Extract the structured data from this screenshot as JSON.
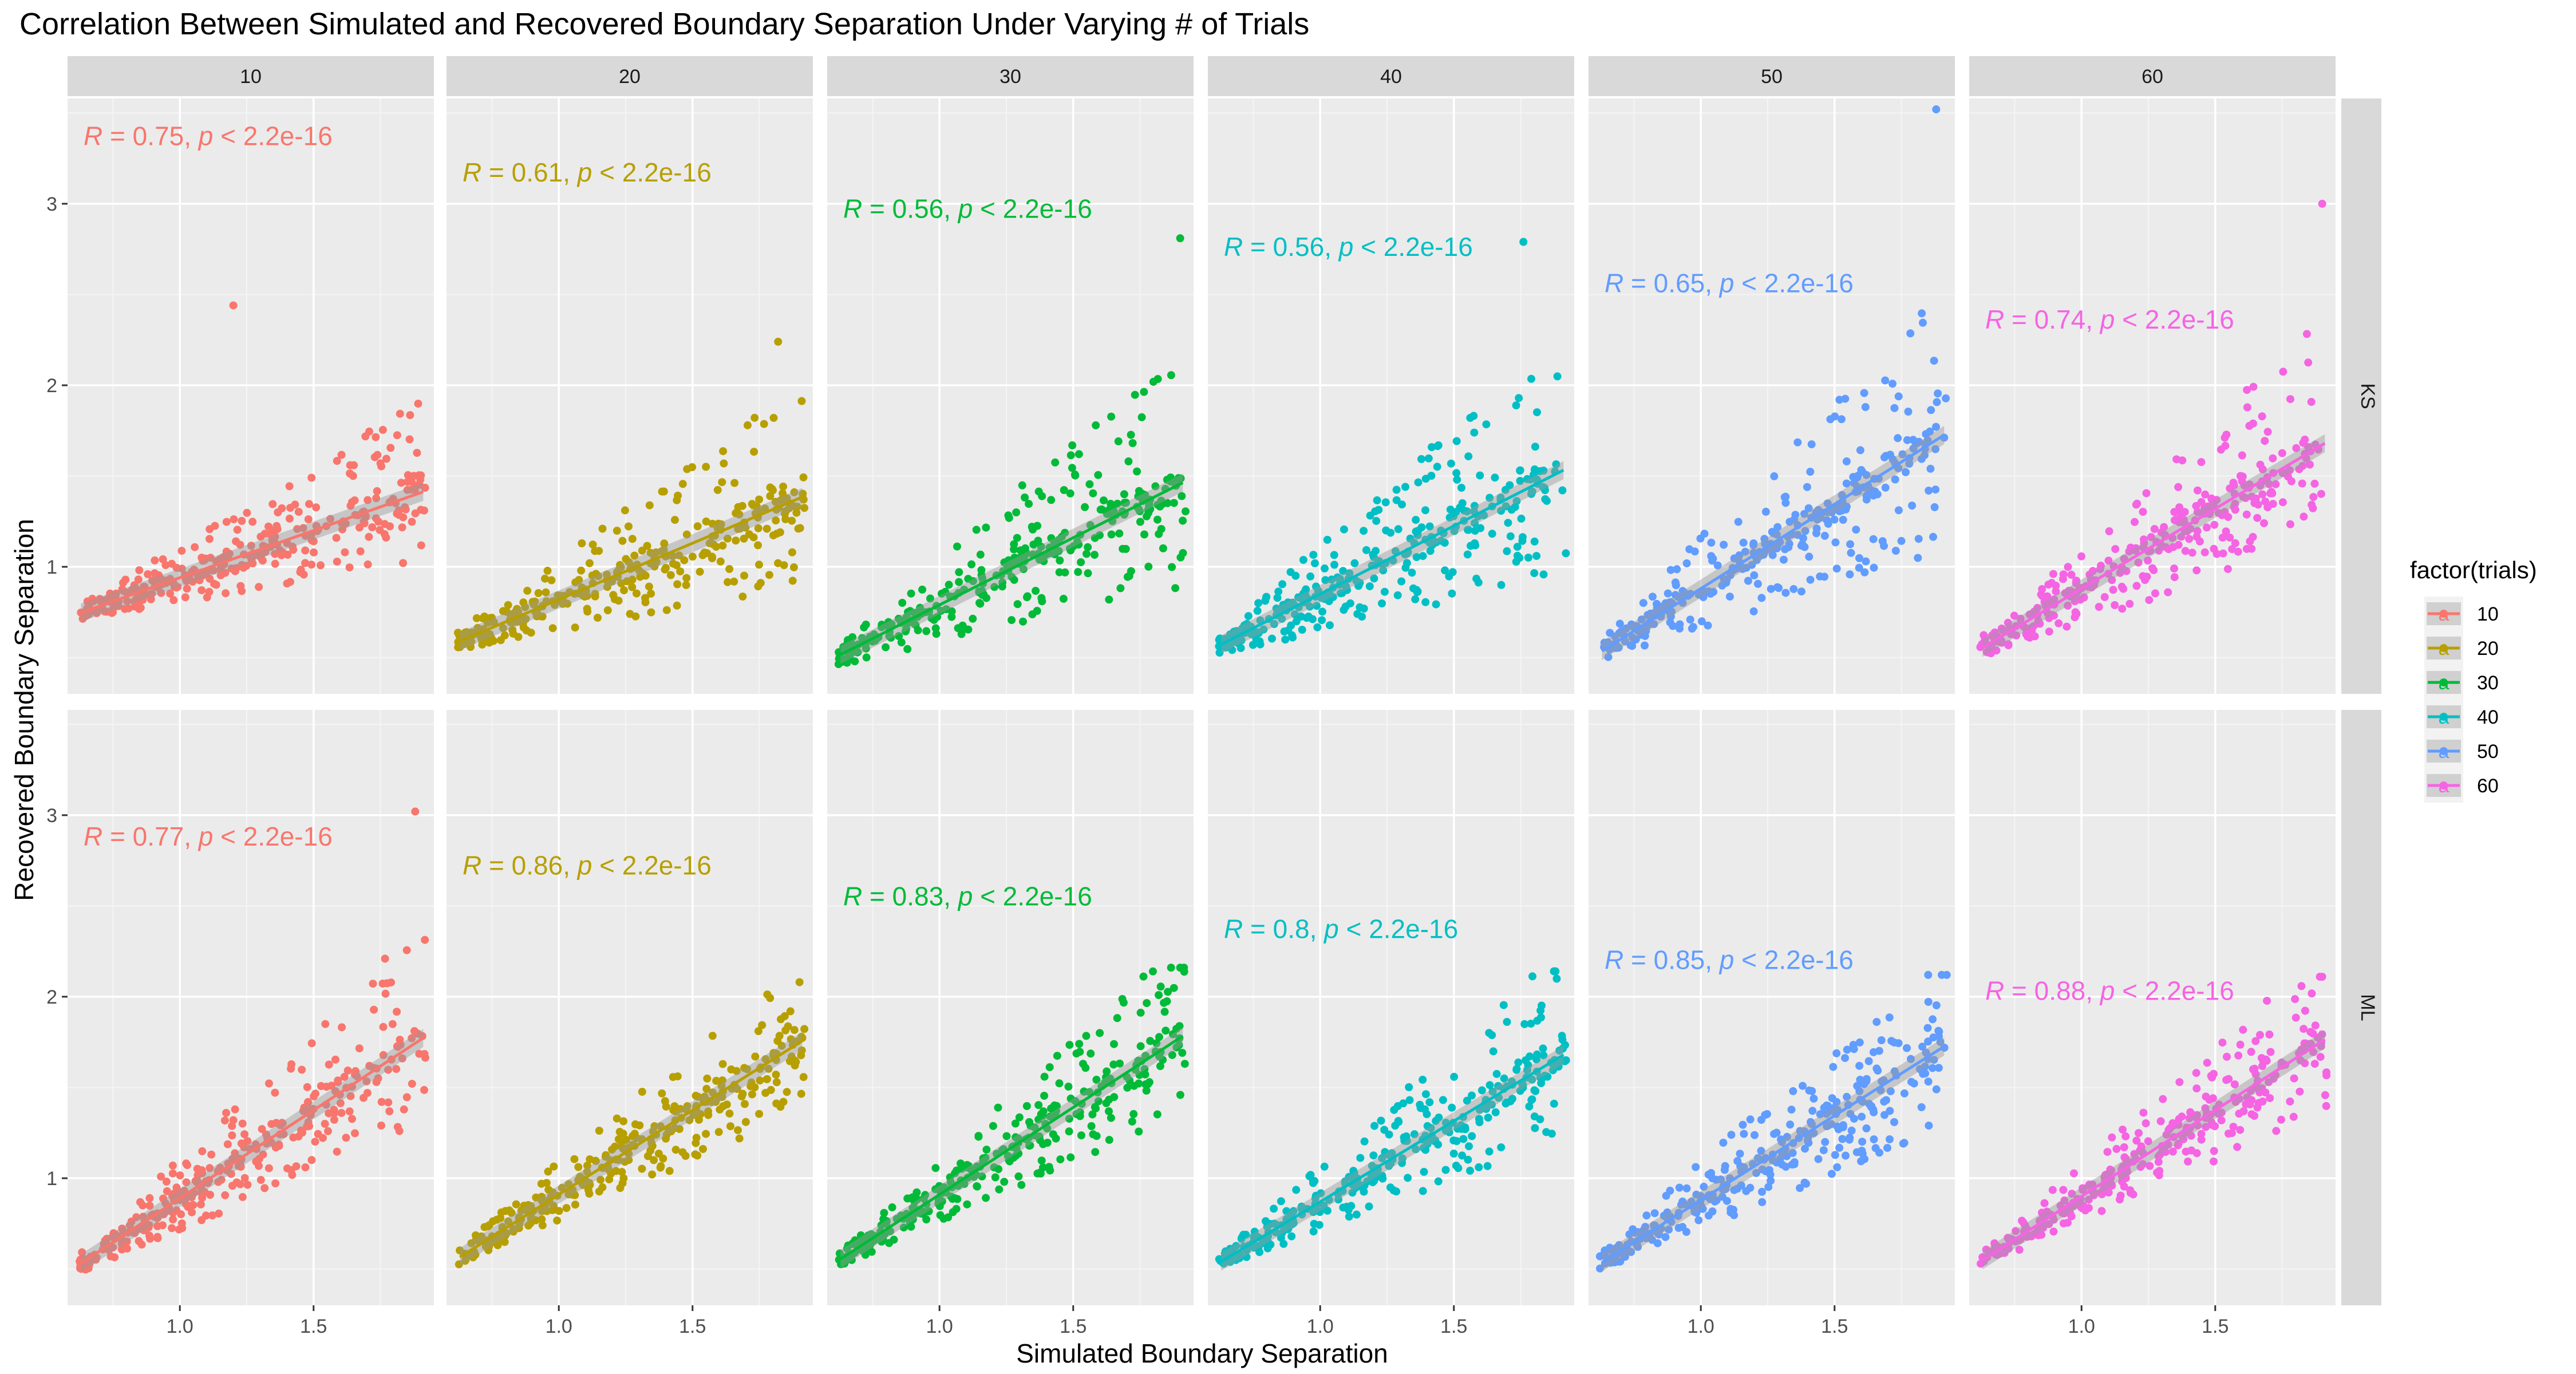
{
  "chart_data": {
    "type": "scatter",
    "title": "Correlation Between Simulated and Recovered Boundary Separation Under Varying # of Trials",
    "xlabel": "Simulated Boundary Separation",
    "ylabel": "Recovered Boundary Separation",
    "xlim": [
      0.58,
      1.95
    ],
    "ylim": [
      0.3,
      3.58
    ],
    "x_ticks": [
      1.0,
      1.5
    ],
    "x_tick_labels": [
      "1.0",
      "1.5"
    ],
    "y_ticks": [
      1,
      2,
      3
    ],
    "y_tick_labels": [
      "1",
      "2",
      "3"
    ],
    "grid": true,
    "columns": [
      "10",
      "20",
      "30",
      "40",
      "50",
      "60"
    ],
    "rows": [
      "KS",
      "ML"
    ],
    "legend": {
      "title": "factor(trials)",
      "position": "right",
      "entries": [
        {
          "label": "10",
          "color": "#F8766D"
        },
        {
          "label": "20",
          "color": "#B79F00"
        },
        {
          "label": "30",
          "color": "#00BA38"
        },
        {
          "label": "40",
          "color": "#00BFC4"
        },
        {
          "label": "50",
          "color": "#619CFF"
        },
        {
          "label": "60",
          "color": "#F564E3"
        }
      ]
    },
    "panels": [
      {
        "row": "KS",
        "trials": "10",
        "color": "#F8766D",
        "annotation": {
          "r": "0.75",
          "p": "2.2e-16",
          "y": 3.37
        },
        "fit": {
          "intercept": 0.42,
          "slope": 0.52
        },
        "max_point": {
          "x": 1.2,
          "y": 2.44
        },
        "spread": 0.28
      },
      {
        "row": "KS",
        "trials": "20",
        "color": "#B79F00",
        "annotation": {
          "r": "0.61",
          "p": "2.2e-16",
          "y": 3.17
        },
        "fit": {
          "intercept": 0.2,
          "slope": 0.62
        },
        "max_point": {
          "x": 1.82,
          "y": 2.24
        },
        "spread": 0.35
      },
      {
        "row": "KS",
        "trials": "30",
        "color": "#00BA38",
        "annotation": {
          "r": "0.56",
          "p": "2.2e-16",
          "y": 2.97
        },
        "fit": {
          "intercept": 0.05,
          "slope": 0.74
        },
        "max_point": {
          "x": 1.9,
          "y": 2.81
        },
        "spread": 0.42
      },
      {
        "row": "KS",
        "trials": "40",
        "color": "#00BFC4",
        "annotation": {
          "r": "0.56",
          "p": "2.2e-16",
          "y": 2.76
        },
        "fit": {
          "intercept": 0.1,
          "slope": 0.75
        },
        "max_point": {
          "x": 1.76,
          "y": 2.79
        },
        "spread": 0.42
      },
      {
        "row": "KS",
        "trials": "50",
        "color": "#619CFF",
        "annotation": {
          "r": "0.65",
          "p": "2.2e-16",
          "y": 2.56
        },
        "fit": {
          "intercept": -0.05,
          "slope": 0.93
        },
        "max_point": {
          "x": 1.88,
          "y": 3.52
        },
        "spread": 0.45
      },
      {
        "row": "KS",
        "trials": "60",
        "color": "#F564E3",
        "annotation": {
          "r": "0.74",
          "p": "2.2e-16",
          "y": 2.36
        },
        "fit": {
          "intercept": 0.0,
          "slope": 0.88
        },
        "max_point": {
          "x": 1.9,
          "y": 3.0
        },
        "spread": 0.38
      },
      {
        "row": "ML",
        "trials": "10",
        "color": "#F8766D",
        "annotation": {
          "r": "0.77",
          "p": "2.2e-16",
          "y": 2.88
        },
        "fit": {
          "intercept": -0.08,
          "slope": 0.97
        },
        "max_point": {
          "x": 1.88,
          "y": 3.02
        },
        "spread": 0.35
      },
      {
        "row": "ML",
        "trials": "20",
        "color": "#B79F00",
        "annotation": {
          "r": "0.86",
          "p": "2.2e-16",
          "y": 2.72
        },
        "fit": {
          "intercept": -0.02,
          "slope": 0.93
        },
        "max_point": {
          "x": 1.9,
          "y": 2.08
        },
        "spread": 0.28
      },
      {
        "row": "ML",
        "trials": "30",
        "color": "#00BA38",
        "annotation": {
          "r": "0.83",
          "p": "2.2e-16",
          "y": 2.55
        },
        "fit": {
          "intercept": -0.05,
          "slope": 0.96
        },
        "max_point": {
          "x": 1.9,
          "y": 2.16
        },
        "spread": 0.3
      },
      {
        "row": "ML",
        "trials": "40",
        "color": "#00BFC4",
        "annotation": {
          "r": "0.8",
          "p": "2.2e-16",
          "y": 2.37
        },
        "fit": {
          "intercept": -0.02,
          "slope": 0.89
        },
        "max_point": {
          "x": 1.88,
          "y": 2.14
        },
        "spread": 0.32
      },
      {
        "row": "ML",
        "trials": "50",
        "color": "#619CFF",
        "annotation": {
          "r": "0.85",
          "p": "2.2e-16",
          "y": 2.2
        },
        "fit": {
          "intercept": -0.05,
          "slope": 0.93
        },
        "max_point": {
          "x": 1.85,
          "y": 2.12
        },
        "spread": 0.32
      },
      {
        "row": "ML",
        "trials": "60",
        "color": "#F564E3",
        "annotation": {
          "r": "0.88",
          "p": "2.2e-16",
          "y": 2.03
        },
        "fit": {
          "intercept": -0.05,
          "slope": 0.95
        },
        "max_point": {
          "x": 1.9,
          "y": 2.11
        },
        "spread": 0.28
      }
    ]
  }
}
